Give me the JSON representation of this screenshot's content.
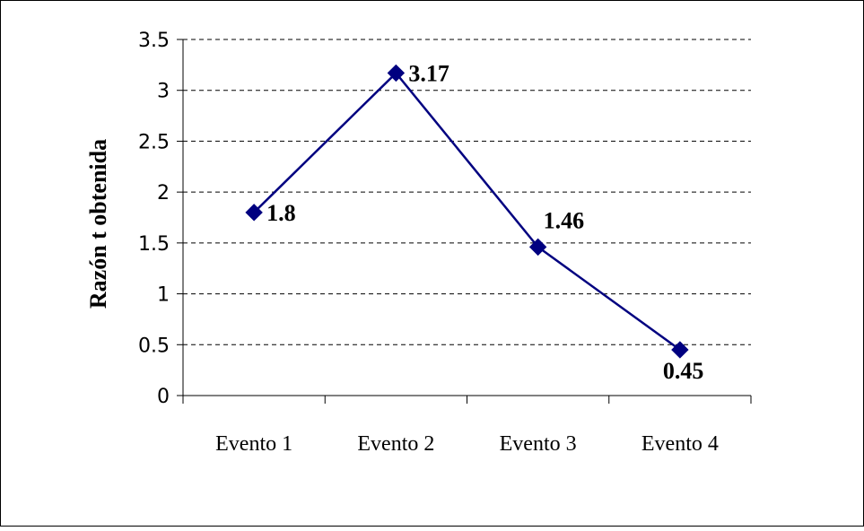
{
  "chart_data": {
    "type": "line",
    "categories": [
      "Evento 1",
      "Evento 2",
      "Evento 3",
      "Evento 4"
    ],
    "series": [
      {
        "values": [
          1.8,
          3.17,
          1.46,
          0.45
        ],
        "data_labels": [
          "1.8",
          "3.17",
          "1.46",
          "0.45"
        ],
        "color": "#000080",
        "marker": "diamond"
      }
    ],
    "ylabel": "Razón t obtenida",
    "xlabel": "",
    "title": "",
    "ylim": [
      0,
      3.5
    ],
    "y_ticks": [
      {
        "value": 0,
        "label": "0"
      },
      {
        "value": 0.5,
        "label": "0.5"
      },
      {
        "value": 1,
        "label": "1"
      },
      {
        "value": 1.5,
        "label": "1.5"
      },
      {
        "value": 2,
        "label": "2"
      },
      {
        "value": 2.5,
        "label": "2.5"
      },
      {
        "value": 3,
        "label": "3"
      },
      {
        "value": 3.5,
        "label": "3.5"
      }
    ],
    "grid": "horizontal dashed",
    "legend": "none"
  }
}
